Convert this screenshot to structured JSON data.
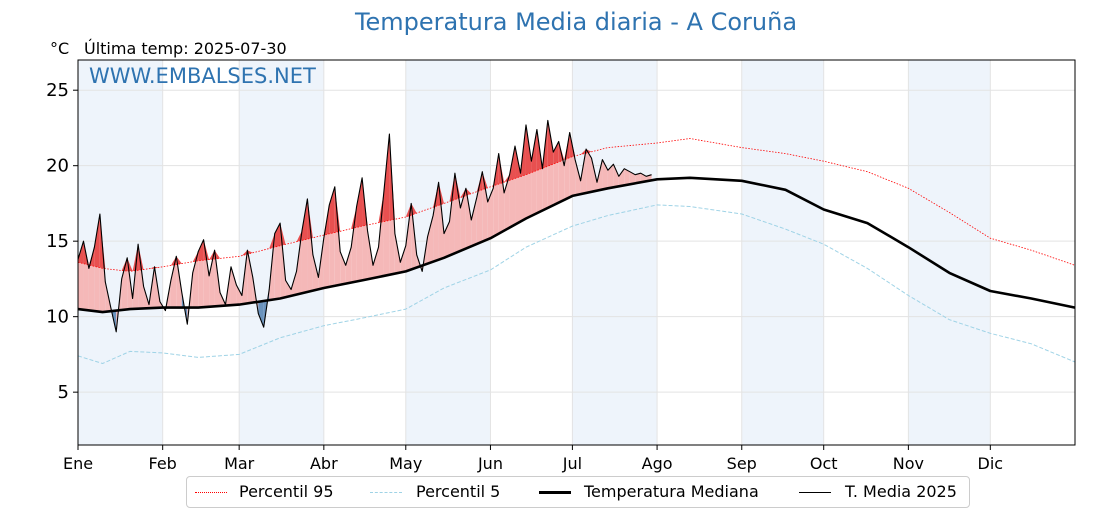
{
  "title": "Temperatura Media diaria - A Coruña",
  "unit_label": "°C",
  "last_temp_label": "Última temp: 2025-07-30",
  "watermark": "WWW.EMBALSES.NET",
  "colors": {
    "p95": "#ff0000",
    "p5": "#9fd3e6",
    "median": "#000000",
    "current": "#000000",
    "above_fill": "#f5b8b8",
    "above_fill_strong": "#e85050",
    "below_fill": "#6a93bd",
    "band": "#eef4fb"
  },
  "legend": [
    {
      "key": "p95",
      "label": "Percentil 95"
    },
    {
      "key": "p5",
      "label": "Percentil 5"
    },
    {
      "key": "median",
      "label": "Temperatura Mediana"
    },
    {
      "key": "current",
      "label": "T. Media 2025"
    }
  ],
  "chart_data": {
    "type": "line",
    "x_unit": "day of year",
    "xlim": [
      1,
      366
    ],
    "ylim": [
      1.5,
      27
    ],
    "grid": true,
    "shaded_months": true,
    "month_ticks": [
      {
        "label": "Ene",
        "day": 1
      },
      {
        "label": "Feb",
        "day": 32
      },
      {
        "label": "Mar",
        "day": 60
      },
      {
        "label": "Abr",
        "day": 91
      },
      {
        "label": "May",
        "day": 121
      },
      {
        "label": "Jun",
        "day": 152
      },
      {
        "label": "Jul",
        "day": 182
      },
      {
        "label": "Ago",
        "day": 213
      },
      {
        "label": "Sep",
        "day": 244
      },
      {
        "label": "Oct",
        "day": 274
      },
      {
        "label": "Nov",
        "day": 305
      },
      {
        "label": "Dic",
        "day": 335
      }
    ],
    "y_ticks": [
      5,
      10,
      15,
      20,
      25
    ],
    "series": [
      {
        "key": "p95",
        "name": "Percentil 95",
        "style": "dotted",
        "x": [
          1,
          10,
          20,
          32,
          45,
          60,
          75,
          91,
          105,
          121,
          135,
          152,
          165,
          182,
          195,
          213,
          225,
          244,
          260,
          274,
          290,
          305,
          320,
          335,
          350,
          366
        ],
        "y": [
          13.6,
          13.2,
          13.0,
          13.3,
          13.7,
          14.0,
          14.7,
          15.4,
          16.0,
          16.6,
          17.5,
          18.6,
          19.4,
          20.6,
          21.2,
          21.5,
          21.8,
          21.2,
          20.8,
          20.3,
          19.6,
          18.5,
          16.9,
          15.2,
          14.4,
          13.4
        ]
      },
      {
        "key": "p5",
        "name": "Percentil 5",
        "style": "dashed",
        "x": [
          1,
          10,
          20,
          32,
          45,
          60,
          75,
          91,
          105,
          121,
          135,
          152,
          165,
          182,
          195,
          213,
          225,
          244,
          260,
          274,
          290,
          305,
          320,
          335,
          350,
          366
        ],
        "y": [
          7.4,
          6.9,
          7.7,
          7.6,
          7.3,
          7.5,
          8.6,
          9.4,
          9.9,
          10.5,
          11.9,
          13.1,
          14.6,
          16.0,
          16.7,
          17.4,
          17.3,
          16.8,
          15.8,
          14.8,
          13.2,
          11.4,
          9.8,
          8.9,
          8.2,
          7.0
        ]
      },
      {
        "key": "median",
        "name": "Temperatura Mediana",
        "style": "solid-thick",
        "x": [
          1,
          10,
          20,
          32,
          45,
          60,
          75,
          91,
          105,
          121,
          135,
          152,
          165,
          182,
          195,
          213,
          225,
          244,
          260,
          274,
          290,
          305,
          320,
          335,
          350,
          366
        ],
        "y": [
          10.5,
          10.3,
          10.5,
          10.6,
          10.6,
          10.8,
          11.2,
          11.9,
          12.4,
          13.0,
          13.9,
          15.2,
          16.5,
          18.0,
          18.5,
          19.1,
          19.2,
          19.0,
          18.4,
          17.1,
          16.2,
          14.6,
          12.9,
          11.7,
          11.2,
          10.6
        ]
      },
      {
        "key": "current",
        "name": "T. Media 2025",
        "style": "solid-thin",
        "x": [
          1,
          3,
          5,
          7,
          9,
          11,
          13,
          15,
          17,
          19,
          21,
          23,
          25,
          27,
          29,
          31,
          33,
          35,
          37,
          39,
          41,
          43,
          45,
          47,
          49,
          51,
          53,
          55,
          57,
          59,
          61,
          63,
          65,
          67,
          69,
          71,
          73,
          75,
          77,
          79,
          81,
          83,
          85,
          87,
          89,
          91,
          93,
          95,
          97,
          99,
          101,
          103,
          105,
          107,
          109,
          111,
          113,
          115,
          117,
          119,
          121,
          123,
          125,
          127,
          129,
          131,
          133,
          135,
          137,
          139,
          141,
          143,
          145,
          147,
          149,
          151,
          153,
          155,
          157,
          159,
          161,
          163,
          165,
          167,
          169,
          171,
          173,
          175,
          177,
          179,
          181,
          183,
          185,
          187,
          189,
          191,
          193,
          195,
          197,
          199,
          201,
          203,
          205,
          207,
          209,
          211
        ],
        "y": [
          13.8,
          15.0,
          13.2,
          14.6,
          16.8,
          12.3,
          10.6,
          9.0,
          12.5,
          13.9,
          11.2,
          14.8,
          12.0,
          10.8,
          13.3,
          11.0,
          10.4,
          12.4,
          14.0,
          11.6,
          9.5,
          12.9,
          14.3,
          15.1,
          12.7,
          14.4,
          11.6,
          10.8,
          13.3,
          12.1,
          11.4,
          14.4,
          12.6,
          10.2,
          9.3,
          11.8,
          15.5,
          16.2,
          12.4,
          11.8,
          13.0,
          15.7,
          17.8,
          14.1,
          12.6,
          15.2,
          17.4,
          18.6,
          14.3,
          13.4,
          14.6,
          17.3,
          19.2,
          15.7,
          13.4,
          14.6,
          18.3,
          22.1,
          15.5,
          13.6,
          14.7,
          17.5,
          14.1,
          13.0,
          15.3,
          16.7,
          18.9,
          15.5,
          16.3,
          19.5,
          17.2,
          18.5,
          16.4,
          17.9,
          19.6,
          17.6,
          18.5,
          20.8,
          18.2,
          19.4,
          21.3,
          19.5,
          22.7,
          20.3,
          22.4,
          19.8,
          23.0,
          20.9,
          21.6,
          20.0,
          22.2,
          20.4,
          19.0,
          21.1,
          20.5,
          18.9,
          20.4,
          19.7,
          20.1,
          19.3,
          19.8,
          19.6,
          19.4,
          19.5,
          19.3,
          19.4
        ]
      }
    ]
  }
}
